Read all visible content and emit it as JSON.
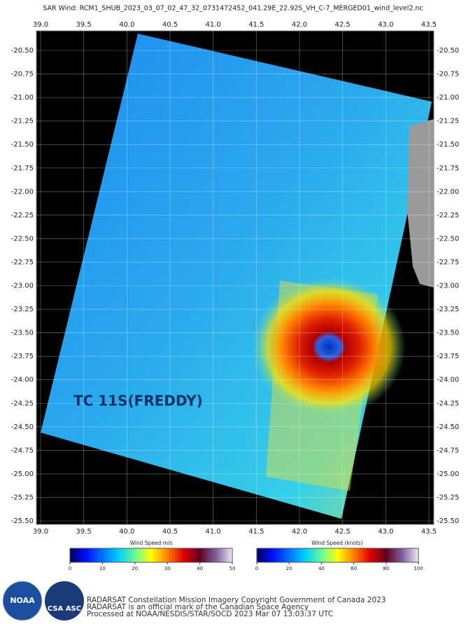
{
  "title": "SAR Wind: RCM1_SHUB_2023_03_07_02_47_32_0731472452_041.29E_22.92S_VH_C-7_MERGED01_wind_level2.nc",
  "map": {
    "lon_ticks": [
      {
        "value": 39,
        "label": "39.0"
      },
      {
        "value": 39.5,
        "label": "39.5"
      },
      {
        "value": 40,
        "label": "40.0"
      },
      {
        "value": 40.5,
        "label": "40.5"
      },
      {
        "value": 41,
        "label": "41.0"
      },
      {
        "value": 41.5,
        "label": "41.5"
      },
      {
        "value": 42,
        "label": "42.0"
      },
      {
        "value": 42.5,
        "label": "42.5"
      },
      {
        "value": 43,
        "label": "43.0"
      },
      {
        "value": 43.5,
        "label": "43.5"
      }
    ],
    "lat_ticks": [
      {
        "value": -20.5,
        "label": "-20.50"
      },
      {
        "value": -20.75,
        "label": "-20.75"
      },
      {
        "value": -21,
        "label": "-21.00"
      },
      {
        "value": -21.25,
        "label": "-21.25"
      },
      {
        "value": -21.5,
        "label": "-21.50"
      },
      {
        "value": -21.75,
        "label": "-21.75"
      },
      {
        "value": -22,
        "label": "-22.00"
      },
      {
        "value": -22.25,
        "label": "-22.25"
      },
      {
        "value": -22.5,
        "label": "-22.50"
      },
      {
        "value": -22.75,
        "label": "-22.75"
      },
      {
        "value": -23,
        "label": "-23.00"
      },
      {
        "value": -23.25,
        "label": "-23.25"
      },
      {
        "value": -23.5,
        "label": "-23.50"
      },
      {
        "value": -23.75,
        "label": "-23.75"
      },
      {
        "value": -24,
        "label": "-24.00"
      },
      {
        "value": -24.25,
        "label": "-24.25"
      },
      {
        "value": -24.5,
        "label": "-24.50"
      },
      {
        "value": -24.75,
        "label": "-24.75"
      },
      {
        "value": -25,
        "label": "-25.00"
      },
      {
        "value": -25.25,
        "label": "-25.25"
      },
      {
        "value": -25.5,
        "label": "-25.50"
      }
    ],
    "annotation": "TC 11S(FREDDY)"
  },
  "colorbars": [
    {
      "label": "Wind Speed m/s",
      "ticks": [
        0,
        10,
        20,
        30,
        40,
        50
      ]
    },
    {
      "label": "Wind Speed (knots)",
      "ticks": [
        0,
        20,
        40,
        60,
        80,
        100
      ]
    }
  ],
  "logos": [
    "NOAA",
    "CSA ASC"
  ],
  "credits": [
    "RADARSAT Constellation Mission Imagery Copyright Government of Canada 2023",
    "RADARSAT is an official mark of the Canadian Space Agency",
    "Processed at NOAA/NESDIS/STAR/SOCD 2023 Mar 07 13:03:37 UTC"
  ]
}
